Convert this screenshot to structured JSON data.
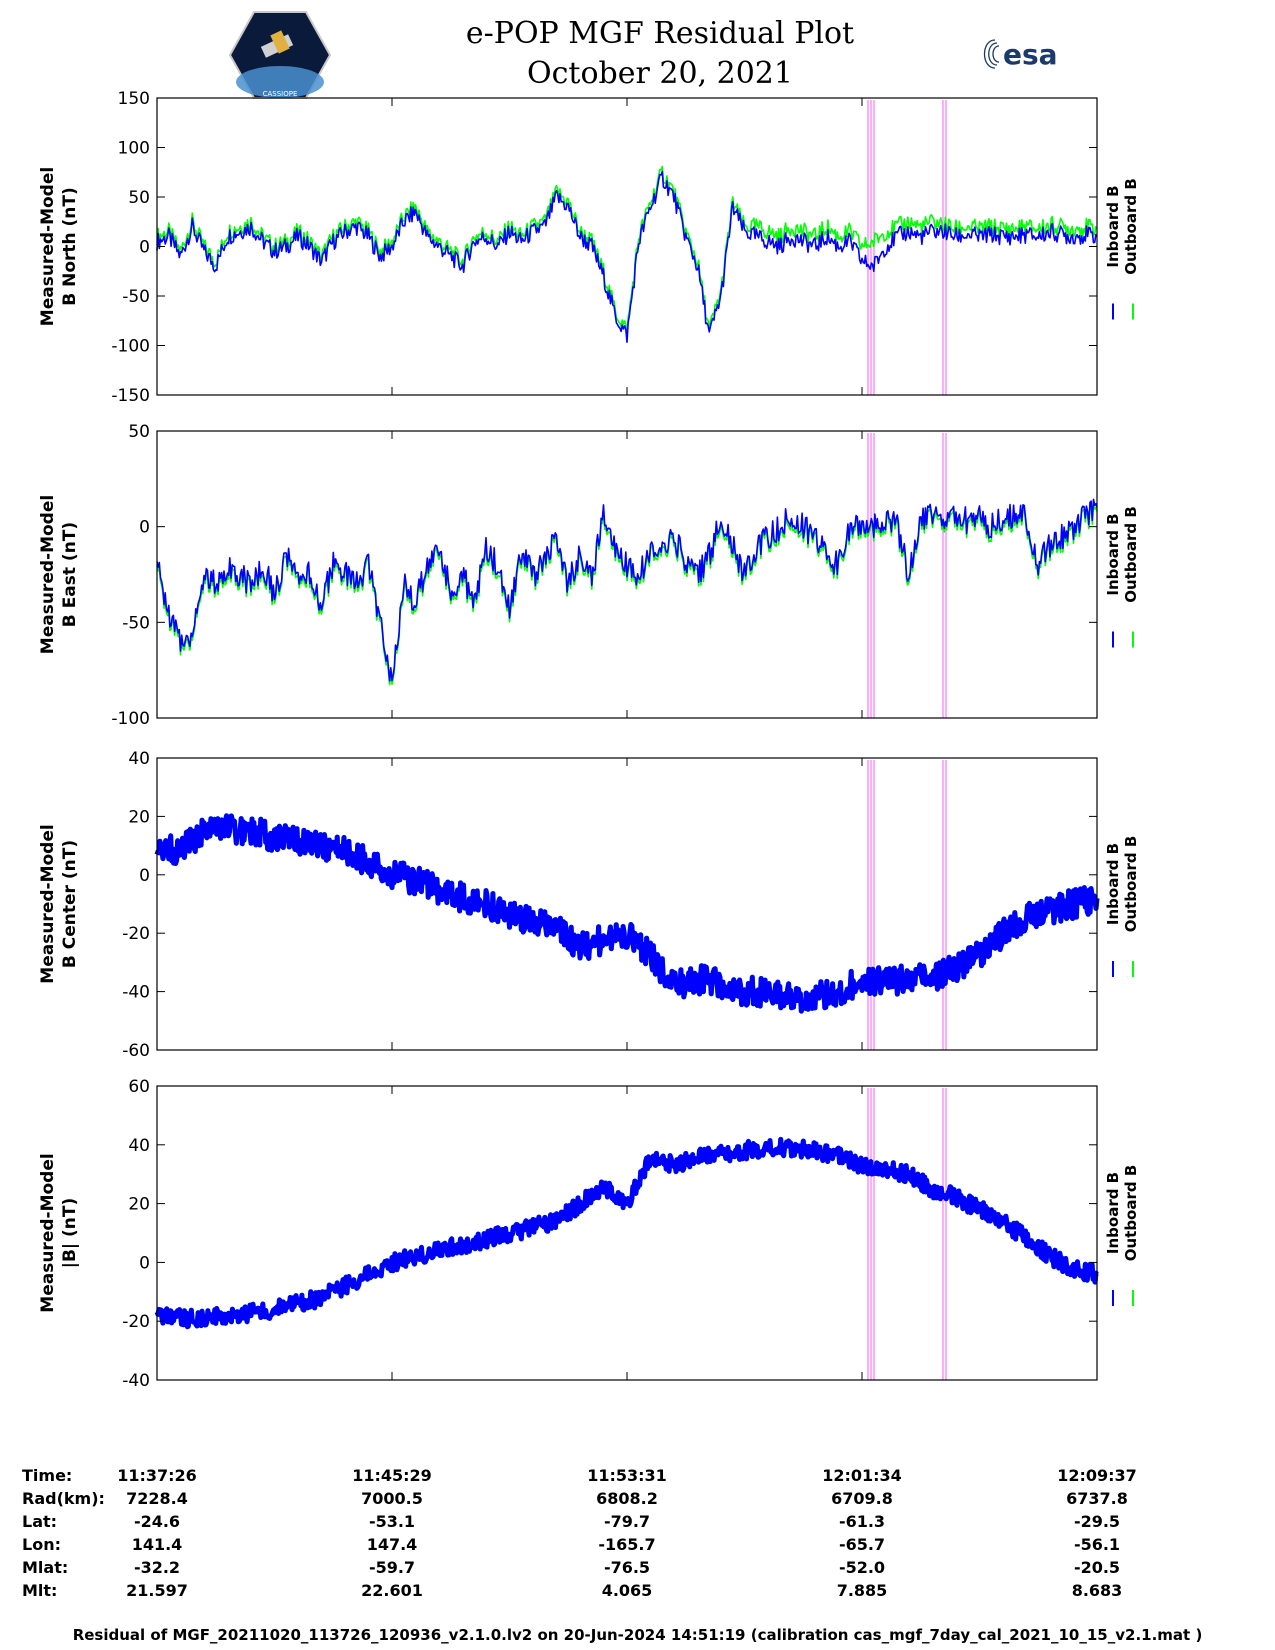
{
  "header": {
    "title_line1": "e-POP MGF Residual Plot",
    "title_line2": "October 20, 2021",
    "left_logo": "cassiope-satellite-logo",
    "left_logo_text": "CASSIOPE",
    "right_logo": "esa-logo",
    "right_logo_text": "esa"
  },
  "colors": {
    "inboard": "#0000ff",
    "outboard": "#00ff00",
    "marker": "#ff88ff"
  },
  "legend": {
    "inboard": "Inboard B",
    "outboard": "Outboard B"
  },
  "chart_data": [
    {
      "type": "line",
      "ylabel_line1": "Measured-Model",
      "ylabel_line2": "B North (nT)",
      "ylim": [
        -150,
        150
      ],
      "yticks": [
        150,
        100,
        50,
        0,
        -50,
        -100,
        -150
      ],
      "x": [
        0,
        1,
        2,
        3,
        4,
        5,
        6,
        7,
        8,
        9,
        10,
        11,
        12,
        13,
        14,
        15,
        16,
        17,
        18,
        19,
        20,
        21,
        22,
        23,
        24,
        25,
        26,
        27,
        28,
        29,
        30,
        31,
        32,
        33,
        34,
        35,
        36,
        37,
        38,
        39,
        40,
        41,
        42,
        43,
        44,
        45,
        46,
        47,
        48,
        49,
        50,
        51,
        52,
        53,
        54,
        55,
        56,
        57,
        58,
        59,
        60,
        61,
        62,
        63,
        64,
        65,
        66,
        67,
        68,
        69,
        70,
        71,
        72,
        73,
        74,
        75,
        76,
        77,
        78,
        79,
        80
      ],
      "series": [
        {
          "name": "Inboard B",
          "color": "#0000ff",
          "values": [
            5,
            10,
            -10,
            20,
            -5,
            -20,
            10,
            15,
            20,
            5,
            -5,
            0,
            10,
            0,
            -15,
            5,
            15,
            20,
            10,
            -10,
            0,
            25,
            35,
            10,
            0,
            -10,
            -20,
            5,
            10,
            0,
            15,
            5,
            15,
            20,
            50,
            40,
            10,
            0,
            -30,
            -70,
            -90,
            5,
            40,
            70,
            50,
            10,
            -20,
            -90,
            -50,
            40,
            15,
            10,
            5,
            0,
            10,
            5,
            0,
            10,
            0,
            5,
            -15,
            -20,
            0,
            10,
            15,
            10,
            15,
            15,
            10,
            12,
            10,
            12,
            10,
            10,
            12,
            10,
            15,
            12,
            10,
            12,
            10
          ]
        },
        {
          "name": "Outboard B",
          "color": "#00ff00",
          "values": [
            10,
            15,
            -5,
            25,
            0,
            -15,
            15,
            20,
            25,
            10,
            0,
            5,
            15,
            5,
            -10,
            10,
            20,
            25,
            15,
            -5,
            5,
            30,
            40,
            15,
            5,
            -5,
            -15,
            10,
            15,
            5,
            20,
            10,
            20,
            25,
            55,
            45,
            15,
            5,
            -25,
            -65,
            -85,
            10,
            45,
            75,
            55,
            15,
            -15,
            -85,
            -45,
            45,
            20,
            20,
            15,
            10,
            20,
            15,
            10,
            20,
            10,
            15,
            0,
            5,
            15,
            20,
            25,
            20,
            25,
            22,
            18,
            20,
            18,
            20,
            18,
            18,
            20,
            18,
            22,
            20,
            18,
            20,
            18
          ]
        }
      ]
    },
    {
      "type": "line",
      "ylabel_line1": "Measured-Model",
      "ylabel_line2": "B East (nT)",
      "ylim": [
        -100,
        50
      ],
      "yticks": [
        50,
        0,
        -50,
        -100
      ],
      "x": [
        0,
        1,
        2,
        3,
        4,
        5,
        6,
        7,
        8,
        9,
        10,
        11,
        12,
        13,
        14,
        15,
        16,
        17,
        18,
        19,
        20,
        21,
        22,
        23,
        24,
        25,
        26,
        27,
        28,
        29,
        30,
        31,
        32,
        33,
        34,
        35,
        36,
        37,
        38,
        39,
        40,
        41,
        42,
        43,
        44,
        45,
        46,
        47,
        48,
        49,
        50,
        51,
        52,
        53,
        54,
        55,
        56,
        57,
        58,
        59,
        60,
        61,
        62,
        63,
        64,
        65,
        66,
        67,
        68,
        69,
        70,
        71,
        72,
        73,
        74,
        75,
        76,
        77,
        78,
        79,
        80
      ],
      "series": [
        {
          "name": "Inboard B",
          "color": "#0000ff",
          "values": [
            -20,
            -45,
            -60,
            -55,
            -25,
            -30,
            -20,
            -25,
            -30,
            -20,
            -35,
            -15,
            -30,
            -25,
            -40,
            -20,
            -25,
            -30,
            -20,
            -50,
            -80,
            -30,
            -40,
            -20,
            -10,
            -35,
            -25,
            -40,
            -10,
            -20,
            -45,
            -15,
            -25,
            -20,
            -5,
            -30,
            -15,
            -25,
            5,
            -10,
            -20,
            -25,
            -15,
            -10,
            -5,
            -20,
            -25,
            -15,
            5,
            -10,
            -25,
            -10,
            -5,
            0,
            5,
            0,
            -5,
            -15,
            -20,
            0,
            2,
            0,
            5,
            0,
            -25,
            5,
            5,
            5,
            5,
            3,
            5,
            0,
            5,
            5,
            5,
            -20,
            -10,
            -5,
            0,
            5,
            10
          ]
        },
        {
          "name": "Outboard B",
          "color": "#00ff00",
          "values": [
            -22,
            -47,
            -62,
            -57,
            -27,
            -32,
            -22,
            -27,
            -32,
            -22,
            -37,
            -17,
            -32,
            -27,
            -42,
            -22,
            -27,
            -32,
            -22,
            -52,
            -82,
            -32,
            -42,
            -22,
            -12,
            -37,
            -27,
            -42,
            -12,
            -22,
            -47,
            -17,
            -27,
            -22,
            -7,
            -32,
            -17,
            -27,
            3,
            -12,
            -22,
            -27,
            -17,
            -12,
            -7,
            -22,
            -27,
            -17,
            3,
            -12,
            -27,
            -12,
            -7,
            -2,
            3,
            -2,
            -7,
            -17,
            -22,
            -2,
            0,
            -2,
            3,
            -2,
            -27,
            3,
            3,
            3,
            3,
            1,
            3,
            -2,
            3,
            3,
            3,
            -22,
            -12,
            -7,
            -2,
            3,
            8
          ]
        }
      ]
    },
    {
      "type": "line",
      "ylabel_line1": "Measured-Model",
      "ylabel_line2": "B Center (nT)",
      "ylim": [
        -60,
        40
      ],
      "yticks": [
        40,
        20,
        0,
        -20,
        -40,
        -60
      ],
      "x": [
        0,
        2,
        4,
        6,
        8,
        10,
        12,
        14,
        16,
        18,
        20,
        22,
        24,
        26,
        28,
        30,
        32,
        34,
        36,
        38,
        40,
        42,
        44,
        46,
        48,
        50,
        52,
        54,
        56,
        58,
        60,
        62,
        64,
        66,
        68,
        70,
        72,
        74,
        76,
        78,
        80
      ],
      "series": [
        {
          "name": "Inboard B",
          "color": "#0000ff",
          "values": [
            10,
            8,
            15,
            16,
            15,
            13,
            12,
            10,
            8,
            4,
            0,
            -2,
            -5,
            -8,
            -10,
            -14,
            -16,
            -18,
            -25,
            -22,
            -20,
            -28,
            -38,
            -36,
            -37,
            -40,
            -40,
            -42,
            -42,
            -40,
            -36,
            -36,
            -36,
            -35,
            -32,
            -27,
            -20,
            -15,
            -12,
            -10,
            -8
          ]
        },
        {
          "name": "Outboard B",
          "color": "#00ff00",
          "values": [
            10,
            8,
            15,
            16,
            15,
            13,
            12,
            10,
            8,
            4,
            0,
            -2,
            -5,
            -8,
            -10,
            -14,
            -16,
            -18,
            -25,
            -22,
            -20,
            -28,
            -38,
            -36,
            -37,
            -40,
            -40,
            -42,
            -42,
            -40,
            -36,
            -36,
            -36,
            -35,
            -32,
            -27,
            -20,
            -15,
            -12,
            -10,
            -8
          ]
        }
      ]
    },
    {
      "type": "line",
      "ylabel_line1": "Measured-Model",
      "ylabel_line2": "|B| (nT)",
      "ylim": [
        -40,
        60
      ],
      "yticks": [
        60,
        40,
        20,
        0,
        -20,
        -40
      ],
      "x": [
        0,
        2,
        4,
        6,
        8,
        10,
        12,
        14,
        16,
        18,
        20,
        22,
        24,
        26,
        28,
        30,
        32,
        34,
        36,
        38,
        40,
        42,
        44,
        46,
        48,
        50,
        52,
        54,
        56,
        58,
        60,
        62,
        64,
        66,
        68,
        70,
        72,
        74,
        76,
        78,
        80
      ],
      "series": [
        {
          "name": "Inboard B",
          "color": "#0000ff",
          "values": [
            -18,
            -19,
            -19,
            -18,
            -17,
            -16,
            -14,
            -12,
            -8,
            -4,
            0,
            2,
            4,
            6,
            8,
            10,
            12,
            14,
            20,
            26,
            20,
            35,
            33,
            36,
            37,
            38,
            39,
            39,
            38,
            36,
            33,
            32,
            30,
            25,
            22,
            18,
            14,
            8,
            2,
            -2,
            -4
          ]
        },
        {
          "name": "Outboard B",
          "color": "#00ff00",
          "values": [
            -18,
            -19,
            -19,
            -18,
            -17,
            -16,
            -14,
            -12,
            -8,
            -4,
            0,
            2,
            4,
            6,
            8,
            10,
            12,
            14,
            20,
            26,
            20,
            35,
            33,
            36,
            37,
            38,
            39,
            39,
            38,
            36,
            33,
            32,
            30,
            25,
            22,
            18,
            14,
            8,
            2,
            -2,
            -4
          ]
        }
      ]
    }
  ],
  "table": {
    "row_labels": [
      "Time:",
      "Rad(km):",
      "Lat:",
      "Lon:",
      "Mlat:",
      "Mlt:"
    ],
    "columns": [
      [
        "11:37:26",
        "7228.4",
        "-24.6",
        "141.4",
        "-32.2",
        "21.597"
      ],
      [
        "11:45:29",
        "7000.5",
        "-53.1",
        "147.4",
        "-59.7",
        "22.601"
      ],
      [
        "11:53:31",
        "6808.2",
        "-79.7",
        "-165.7",
        "-76.5",
        "4.065"
      ],
      [
        "12:01:34",
        "6709.8",
        "-61.3",
        "-65.7",
        "-52.0",
        "7.885"
      ],
      [
        "12:09:37",
        "6737.8",
        "-29.5",
        "-56.1",
        "-20.5",
        "8.683"
      ]
    ]
  },
  "footer": "Residual of MGF_20211020_113726_120936_v2.1.0.lv2 on 20-Jun-2024 14:51:19 (calibration cas_mgf_7day_cal_2021_10_15_v2.1.mat )"
}
